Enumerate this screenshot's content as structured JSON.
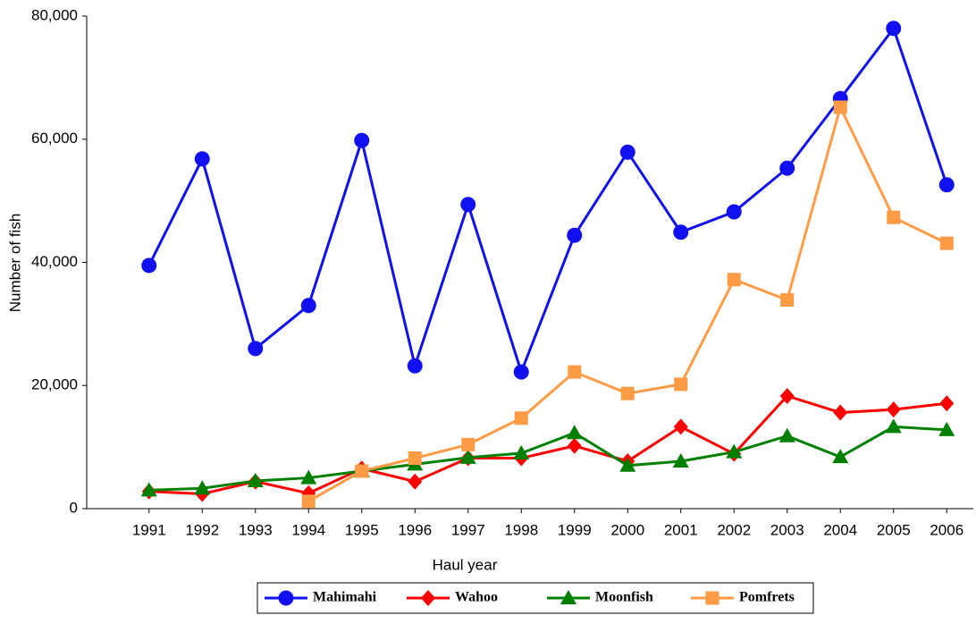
{
  "chart_data": {
    "type": "line",
    "x_label": "Haul year",
    "y_label": "Number of fish",
    "categories": [
      "1991",
      "1992",
      "1993",
      "1994",
      "1995",
      "1996",
      "1997",
      "1998",
      "1999",
      "2000",
      "2001",
      "2002",
      "2003",
      "2004",
      "2005",
      "2006"
    ],
    "series": [
      {
        "name": "Mahimahi",
        "color": "#1010f0",
        "marker": "circle",
        "values": [
          39500,
          56800,
          26000,
          33000,
          59800,
          23200,
          49400,
          22200,
          44400,
          57900,
          44900,
          48200,
          55300,
          66600,
          78000,
          52600
        ]
      },
      {
        "name": "Wahoo",
        "color": "#ff0000",
        "marker": "diamond",
        "values": [
          2800,
          2400,
          4400,
          2500,
          6500,
          4400,
          8200,
          8200,
          10200,
          7700,
          13300,
          8900,
          18300,
          15600,
          16100,
          17100
        ]
      },
      {
        "name": "Moonfish",
        "color": "#008000",
        "marker": "triangle",
        "values": [
          3000,
          3300,
          4500,
          5000,
          6100,
          7200,
          8300,
          9000,
          12300,
          7000,
          7700,
          9200,
          11800,
          8400,
          13300,
          12800
        ]
      },
      {
        "name": "Pomfrets",
        "color": "#ff9a45",
        "marker": "square",
        "values": [
          null,
          null,
          null,
          1200,
          6100,
          8200,
          10400,
          14700,
          22200,
          18700,
          20200,
          37200,
          33900,
          65200,
          47300,
          43100
        ]
      }
    ],
    "ylim": [
      0,
      80000
    ],
    "yticks": [
      0,
      {
        "value": 20000,
        "label": "20,000"
      },
      {
        "value": 40000,
        "label": "40,000"
      },
      {
        "value": 60000,
        "label": "60,000"
      },
      {
        "value": 80000,
        "label": "80,000"
      }
    ],
    "legend": "bottom"
  }
}
